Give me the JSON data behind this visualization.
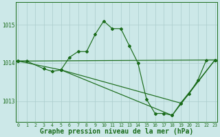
{
  "background_color": "#cce8e8",
  "grid_color": "#aacccc",
  "line_color": "#1a6b1a",
  "xlabel": "Graphe pression niveau de la mer (hPa)",
  "xlabel_fontsize": 7.0,
  "yticks": [
    1013,
    1014,
    1015
  ],
  "xticks": [
    0,
    1,
    2,
    3,
    4,
    5,
    6,
    7,
    8,
    9,
    10,
    11,
    12,
    13,
    14,
    15,
    16,
    17,
    18,
    19,
    20,
    21,
    22,
    23
  ],
  "xlim": [
    -0.3,
    23.3
  ],
  "ylim": [
    1012.45,
    1015.6
  ],
  "series": [
    {
      "x": [
        0,
        1,
        3,
        4,
        5,
        6,
        7,
        8,
        9,
        10,
        11,
        12,
        13,
        14,
        15,
        16,
        17,
        18,
        19,
        20,
        21,
        22,
        23
      ],
      "y": [
        1014.05,
        1014.05,
        1013.85,
        1013.78,
        1013.82,
        1014.15,
        1014.3,
        1014.3,
        1014.75,
        1015.1,
        1014.9,
        1014.9,
        1014.45,
        1014.0,
        1013.05,
        1012.68,
        1012.68,
        1012.63,
        1012.95,
        1013.2,
        1013.55,
        1014.08,
        1014.08
      ]
    },
    {
      "x": [
        0,
        23
      ],
      "y": [
        1014.05,
        1014.08
      ]
    },
    {
      "x": [
        0,
        5,
        19,
        23
      ],
      "y": [
        1014.05,
        1013.82,
        1012.95,
        1014.08
      ]
    },
    {
      "x": [
        5,
        18,
        23
      ],
      "y": [
        1013.82,
        1012.63,
        1014.08
      ]
    }
  ]
}
